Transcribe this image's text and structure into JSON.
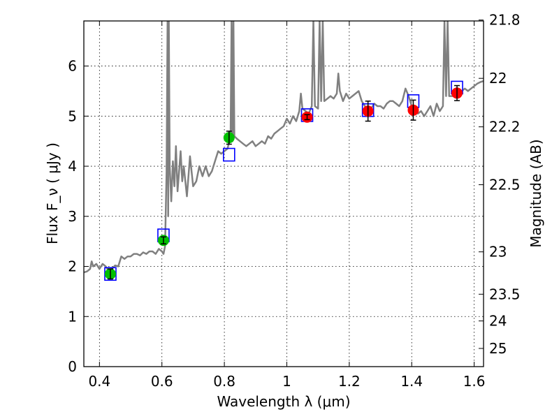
{
  "chart_data": {
    "type": "scatter",
    "title": "",
    "xlabel": "Wavelength  λ (μm)",
    "ylabel": "Flux  F_ν  ( μJy )",
    "ylabel_right": "Magnitude (AB)",
    "xlim": [
      0.35,
      1.63
    ],
    "ylim": [
      0,
      6.9
    ],
    "grid": true,
    "x_ticks": [
      {
        "value": 0.4,
        "label": "0.4"
      },
      {
        "value": 0.6,
        "label": "0.6"
      },
      {
        "value": 0.8,
        "label": "0.8"
      },
      {
        "value": 1.0,
        "label": "1"
      },
      {
        "value": 1.2,
        "label": "1.2"
      },
      {
        "value": 1.4,
        "label": "1.4"
      },
      {
        "value": 1.6,
        "label": "1.6"
      }
    ],
    "y_ticks": [
      {
        "value": 0,
        "label": "0"
      },
      {
        "value": 1,
        "label": "1"
      },
      {
        "value": 2,
        "label": "2"
      },
      {
        "value": 3,
        "label": "3"
      },
      {
        "value": 4,
        "label": "4"
      },
      {
        "value": 5,
        "label": "5"
      },
      {
        "value": 6,
        "label": "6"
      }
    ],
    "right_ticks": [
      {
        "value": 21.8,
        "label": "21.8"
      },
      {
        "value": 22.0,
        "label": "22"
      },
      {
        "value": 22.2,
        "label": "22.2"
      },
      {
        "value": 22.5,
        "label": "22.5"
      },
      {
        "value": 23.0,
        "label": "23"
      },
      {
        "value": 23.5,
        "label": "23.5"
      },
      {
        "value": 24.0,
        "label": "24"
      },
      {
        "value": 25.0,
        "label": "25"
      }
    ],
    "colors": {
      "spectrum": "#808080",
      "model_box": "#0000ff",
      "optical_point": "#00c000",
      "nir_point": "#ff0000",
      "grid": "#000000"
    },
    "spectrum": [
      [
        0.35,
        1.88
      ],
      [
        0.36,
        1.9
      ],
      [
        0.37,
        1.95
      ],
      [
        0.375,
        2.1
      ],
      [
        0.38,
        2.0
      ],
      [
        0.39,
        2.05
      ],
      [
        0.4,
        1.95
      ],
      [
        0.41,
        2.05
      ],
      [
        0.42,
        2.0
      ],
      [
        0.43,
        1.9
      ],
      [
        0.44,
        1.95
      ],
      [
        0.45,
        2.02
      ],
      [
        0.46,
        2.0
      ],
      [
        0.47,
        2.2
      ],
      [
        0.48,
        2.15
      ],
      [
        0.49,
        2.2
      ],
      [
        0.5,
        2.2
      ],
      [
        0.51,
        2.25
      ],
      [
        0.52,
        2.25
      ],
      [
        0.53,
        2.22
      ],
      [
        0.54,
        2.28
      ],
      [
        0.55,
        2.25
      ],
      [
        0.56,
        2.3
      ],
      [
        0.57,
        2.3
      ],
      [
        0.58,
        2.25
      ],
      [
        0.59,
        2.35
      ],
      [
        0.6,
        2.3
      ],
      [
        0.605,
        2.25
      ],
      [
        0.61,
        2.4
      ],
      [
        0.615,
        3.9
      ],
      [
        0.618,
        6.9
      ],
      [
        0.62,
        3.0
      ],
      [
        0.622,
        6.9
      ],
      [
        0.625,
        4.0
      ],
      [
        0.63,
        3.3
      ],
      [
        0.635,
        4.1
      ],
      [
        0.64,
        3.6
      ],
      [
        0.645,
        4.4
      ],
      [
        0.65,
        3.5
      ],
      [
        0.66,
        4.3
      ],
      [
        0.665,
        3.7
      ],
      [
        0.67,
        4.0
      ],
      [
        0.68,
        3.4
      ],
      [
        0.69,
        4.2
      ],
      [
        0.7,
        3.6
      ],
      [
        0.71,
        3.7
      ],
      [
        0.72,
        4.0
      ],
      [
        0.73,
        3.8
      ],
      [
        0.74,
        4.0
      ],
      [
        0.75,
        3.8
      ],
      [
        0.76,
        3.9
      ],
      [
        0.77,
        4.1
      ],
      [
        0.78,
        4.3
      ],
      [
        0.79,
        4.25
      ],
      [
        0.8,
        4.3
      ],
      [
        0.81,
        4.35
      ],
      [
        0.82,
        4.6
      ],
      [
        0.823,
        6.9
      ],
      [
        0.826,
        4.5
      ],
      [
        0.829,
        6.9
      ],
      [
        0.832,
        4.6
      ],
      [
        0.84,
        4.55
      ],
      [
        0.85,
        4.5
      ],
      [
        0.86,
        4.45
      ],
      [
        0.87,
        4.4
      ],
      [
        0.88,
        4.45
      ],
      [
        0.89,
        4.5
      ],
      [
        0.9,
        4.4
      ],
      [
        0.91,
        4.45
      ],
      [
        0.92,
        4.5
      ],
      [
        0.93,
        4.45
      ],
      [
        0.94,
        4.6
      ],
      [
        0.95,
        4.55
      ],
      [
        0.96,
        4.65
      ],
      [
        0.97,
        4.7
      ],
      [
        0.98,
        4.75
      ],
      [
        0.99,
        4.8
      ],
      [
        1.0,
        4.95
      ],
      [
        1.01,
        4.85
      ],
      [
        1.02,
        5.0
      ],
      [
        1.03,
        4.9
      ],
      [
        1.04,
        5.1
      ],
      [
        1.045,
        5.45
      ],
      [
        1.05,
        5.15
      ],
      [
        1.06,
        5.1
      ],
      [
        1.07,
        5.05
      ],
      [
        1.08,
        5.2
      ],
      [
        1.085,
        6.9
      ],
      [
        1.09,
        5.2
      ],
      [
        1.1,
        5.15
      ],
      [
        1.105,
        6.9
      ],
      [
        1.11,
        5.3
      ],
      [
        1.115,
        6.9
      ],
      [
        1.12,
        5.3
      ],
      [
        1.13,
        5.35
      ],
      [
        1.14,
        5.4
      ],
      [
        1.15,
        5.35
      ],
      [
        1.16,
        5.45
      ],
      [
        1.165,
        5.85
      ],
      [
        1.17,
        5.5
      ],
      [
        1.18,
        5.3
      ],
      [
        1.19,
        5.45
      ],
      [
        1.2,
        5.35
      ],
      [
        1.21,
        5.4
      ],
      [
        1.22,
        5.45
      ],
      [
        1.23,
        5.5
      ],
      [
        1.24,
        5.3
      ],
      [
        1.25,
        5.2
      ],
      [
        1.26,
        5.1
      ],
      [
        1.27,
        5.15
      ],
      [
        1.28,
        5.25
      ],
      [
        1.29,
        5.2
      ],
      [
        1.3,
        5.2
      ],
      [
        1.31,
        5.15
      ],
      [
        1.32,
        5.25
      ],
      [
        1.33,
        5.3
      ],
      [
        1.34,
        5.3
      ],
      [
        1.35,
        5.25
      ],
      [
        1.36,
        5.2
      ],
      [
        1.37,
        5.3
      ],
      [
        1.38,
        5.55
      ],
      [
        1.39,
        5.4
      ],
      [
        1.4,
        5.2
      ],
      [
        1.41,
        5.1
      ],
      [
        1.42,
        5.05
      ],
      [
        1.43,
        5.1
      ],
      [
        1.44,
        5.0
      ],
      [
        1.45,
        5.1
      ],
      [
        1.46,
        5.2
      ],
      [
        1.47,
        5.0
      ],
      [
        1.48,
        5.25
      ],
      [
        1.49,
        5.1
      ],
      [
        1.5,
        5.2
      ],
      [
        1.505,
        6.9
      ],
      [
        1.51,
        5.4
      ],
      [
        1.515,
        6.9
      ],
      [
        1.52,
        5.4
      ],
      [
        1.53,
        5.4
      ],
      [
        1.54,
        5.45
      ],
      [
        1.55,
        5.5
      ],
      [
        1.56,
        5.5
      ],
      [
        1.57,
        5.55
      ],
      [
        1.58,
        5.5
      ],
      [
        1.59,
        5.55
      ],
      [
        1.6,
        5.6
      ],
      [
        1.61,
        5.65
      ],
      [
        1.62,
        5.68
      ],
      [
        1.63,
        5.7
      ]
    ],
    "model_boxes": [
      {
        "x": 0.435,
        "y": 1.85
      },
      {
        "x": 0.605,
        "y": 2.62
      },
      {
        "x": 0.815,
        "y": 4.23
      },
      {
        "x": 1.065,
        "y": 5.02
      },
      {
        "x": 1.26,
        "y": 5.12
      },
      {
        "x": 1.405,
        "y": 5.3
      },
      {
        "x": 1.545,
        "y": 5.57
      }
    ],
    "observed_points": [
      {
        "x": 0.435,
        "y": 1.85,
        "err": 0.1,
        "band": "optical"
      },
      {
        "x": 0.605,
        "y": 2.52,
        "err": 0.07,
        "band": "optical"
      },
      {
        "x": 0.815,
        "y": 4.57,
        "err": 0.13,
        "band": "optical"
      },
      {
        "x": 1.065,
        "y": 4.98,
        "err": 0.05,
        "band": "nir"
      },
      {
        "x": 1.26,
        "y": 5.1,
        "err": 0.2,
        "band": "nir"
      },
      {
        "x": 1.405,
        "y": 5.12,
        "err": 0.2,
        "band": "nir"
      },
      {
        "x": 1.545,
        "y": 5.46,
        "err": 0.15,
        "band": "nir"
      }
    ]
  }
}
